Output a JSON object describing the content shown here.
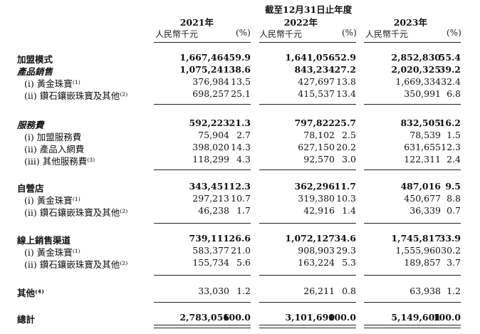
{
  "header": {
    "period": "截至12月31日止年度",
    "years": [
      "2021年",
      "2022年",
      "2023年"
    ],
    "unit": "人民幣千元",
    "pct": "(%)"
  },
  "rows": [
    {
      "label": "加盟模式",
      "style": "bold",
      "vals": [
        "1,667,464",
        "59.9",
        "1,641,056",
        "52.9",
        "2,852,830",
        "55.4"
      ]
    },
    {
      "label": "產品銷售",
      "style": "bolditalic",
      "vals": [
        "1,075,241",
        "38.6",
        "843,234",
        "27.2",
        "2,020,325",
        "39.2"
      ]
    },
    {
      "label": "(i)  黃金珠寶⁽¹⁾",
      "style": "normal",
      "vals": [
        "376,984",
        "13.5",
        "427,697",
        "13.8",
        "1,669,334",
        "32.4"
      ]
    },
    {
      "label": "(ii) 鑽石鑲嵌珠寶及其他⁽²⁾",
      "style": "normal",
      "vals": [
        "698,257",
        "25.1",
        "415,537",
        "13.4",
        "350,991",
        "6.8"
      ]
    },
    {
      "label": "服務費",
      "style": "bolditalic",
      "vals": [
        "592,223",
        "21.3",
        "797,822",
        "25.7",
        "832,505",
        "16.2"
      ]
    },
    {
      "label": "(i)  加盟服務費",
      "style": "normal",
      "vals": [
        "75,904",
        "2.7",
        "78,102",
        "2.5",
        "78,539",
        "1.5"
      ]
    },
    {
      "label": "(ii) 產品入網費",
      "style": "normal",
      "vals": [
        "398,020",
        "14.3",
        "627,150",
        "20.2",
        "631,655",
        "12.3"
      ]
    },
    {
      "label": "(iii) 其他服務費⁽³⁾",
      "style": "normal",
      "vals": [
        "118,299",
        "4.3",
        "92,570",
        "3.0",
        "122,311",
        "2.4"
      ]
    },
    {
      "label": "自營店",
      "style": "bold",
      "vals": [
        "343,451",
        "12.3",
        "362,296",
        "11.7",
        "487,016",
        "9.5"
      ]
    },
    {
      "label": "(i)  黃金珠寶⁽¹⁾",
      "style": "normal",
      "vals": [
        "297,213",
        "10.7",
        "319,380",
        "10.3",
        "450,677",
        "8.8"
      ]
    },
    {
      "label": "(ii) 鑽石鑲嵌珠寶及其他⁽²⁾",
      "style": "normal",
      "vals": [
        "46,238",
        "1.7",
        "42,916",
        "1.4",
        "36,339",
        "0.7"
      ]
    },
    {
      "label": "線上銷售渠道",
      "style": "bold",
      "vals": [
        "739,111",
        "26.6",
        "1,072,127",
        "34.6",
        "1,745,817",
        "33.9"
      ]
    },
    {
      "label": "(i)  黃金珠寶⁽¹⁾",
      "style": "normal",
      "vals": [
        "583,377",
        "21.0",
        "908,903",
        "29.3",
        "1,555,960",
        "30.2"
      ]
    },
    {
      "label": "(ii) 鑽石鑲嵌珠寶及其他⁽²⁾",
      "style": "normal",
      "vals": [
        "155,734",
        "5.6",
        "163,224",
        "5.3",
        "189,857",
        "3.7"
      ]
    },
    {
      "label": "其他⁽⁴⁾",
      "style": "boldlabel",
      "vals": [
        "33,030",
        "1.2",
        "26,211",
        "0.8",
        "63,938",
        "1.2"
      ]
    },
    {
      "label": "總計",
      "style": "bold",
      "vals": [
        "2,783,056",
        "100.0",
        "3,101,690",
        "100.0",
        "5,149,601",
        "100.0"
      ]
    }
  ]
}
